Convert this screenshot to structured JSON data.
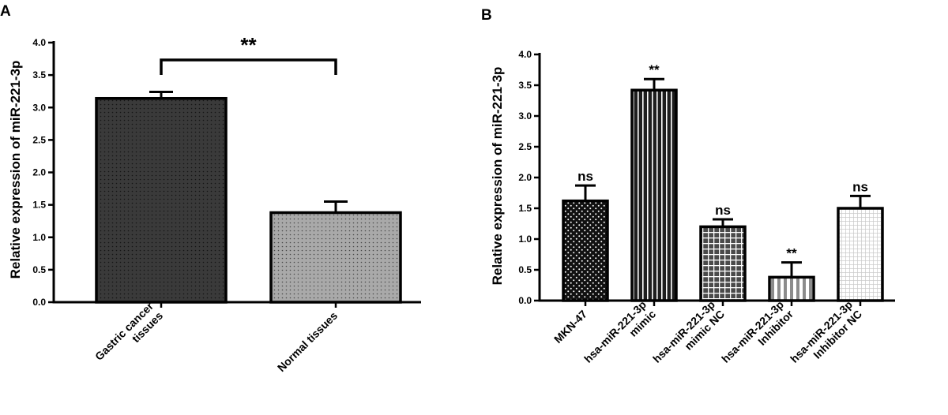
{
  "panels": [
    {
      "label": "A",
      "chart_data": {
        "type": "bar",
        "title": "",
        "xlabel": "",
        "ylabel": "Relative expression of miR-221-3p",
        "ylim": [
          0,
          4.0
        ],
        "yticks": [
          "0.0",
          "0.5",
          "1.0",
          "1.5",
          "2.0",
          "2.5",
          "3.0",
          "3.5",
          "4.0"
        ],
        "categories": [
          [
            "Gastric cancer",
            "tissues"
          ],
          [
            "Normal tissues"
          ]
        ],
        "values": [
          3.14,
          1.38
        ],
        "errors": [
          0.1,
          0.17
        ],
        "fills": [
          "#3a3a3a",
          "#a9a9a9"
        ],
        "patterns": [
          "dots-dark",
          "dots-light"
        ],
        "annotations": [
          {
            "text": "**",
            "type": "bracket",
            "from": 0,
            "to": 1
          }
        ],
        "grid": false
      }
    },
    {
      "label": "B",
      "chart_data": {
        "type": "bar",
        "title": "",
        "xlabel": "",
        "ylabel": "Relative expression of miR-221-3p",
        "ylim": [
          0,
          4.0
        ],
        "yticks": [
          "0.0",
          "0.5",
          "1.0",
          "1.5",
          "2.0",
          "2.5",
          "3.0",
          "3.5",
          "4.0"
        ],
        "categories": [
          [
            "MKN-47"
          ],
          [
            "hsa-miR-221-3p",
            "mimic"
          ],
          [
            "hsa-miR-221-3p",
            "mimic NC"
          ],
          [
            "hsa-miR-221-3p",
            "Inhibitor"
          ],
          [
            "hsa-miR-221-3p",
            "Inhibitor NC"
          ]
        ],
        "values": [
          1.62,
          3.42,
          1.2,
          0.38,
          1.5
        ],
        "errors": [
          0.25,
          0.18,
          0.12,
          0.24,
          0.2
        ],
        "labels": [
          "ns",
          "**",
          "ns",
          "**",
          "ns"
        ],
        "fills": [
          "#111111",
          "#2a2a2a",
          "#5a5a5a",
          "#8c8c8c",
          "#ffffff"
        ],
        "patterns": [
          "dots-white",
          "vertical-stripes",
          "grid",
          "wide-stripes",
          "fine-grid"
        ],
        "grid": false
      }
    }
  ]
}
